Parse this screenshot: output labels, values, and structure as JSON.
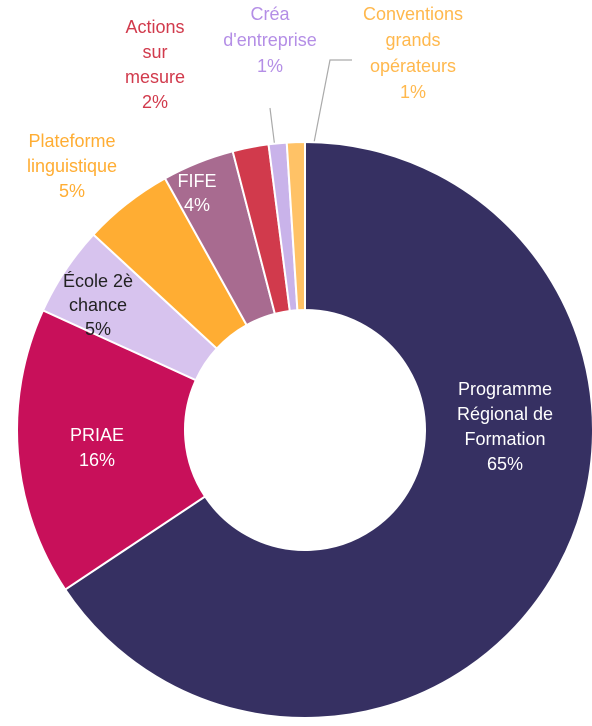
{
  "chart_data": {
    "type": "donut",
    "categories": [
      [
        "Programme",
        "Régional de",
        "Formation"
      ],
      [
        "PRIAE"
      ],
      [
        "École 2è",
        "chance"
      ],
      [
        "Plateforme",
        "linguistique"
      ],
      [
        "FIFE"
      ],
      [
        "Actions",
        "sur",
        "mesure"
      ],
      [
        "Créa",
        "d'entreprise"
      ],
      [
        "Conventions",
        "grands",
        "opérateurs"
      ]
    ],
    "values": [
      65,
      16,
      5,
      5,
      4,
      2,
      1,
      1
    ],
    "value_labels": [
      "65%",
      "16%",
      "5%",
      "5%",
      "4%",
      "2%",
      "1%",
      "1%"
    ],
    "colors": [
      "#363062",
      "#c8105a",
      "#d7c3ee",
      "#ffad33",
      "#a86b90",
      "#d13a4c",
      "#c9b3ea",
      "#ffc266"
    ]
  }
}
